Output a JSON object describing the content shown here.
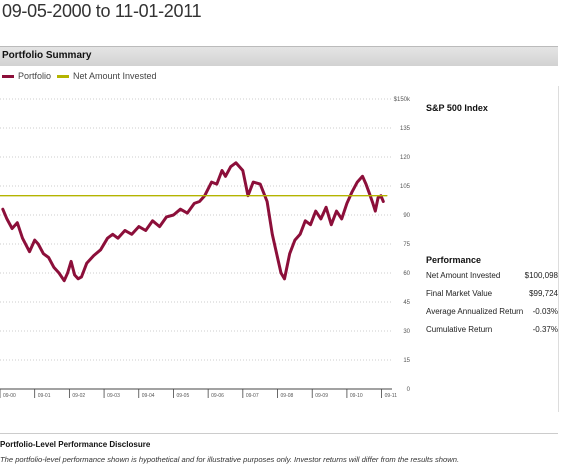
{
  "page": {
    "title": "09-05-2000 to 11-01-2011"
  },
  "section": {
    "title": "Portfolio Summary"
  },
  "legend": [
    {
      "label": "Portfolio",
      "color": "#8c0f3a"
    },
    {
      "label": "Net Amount Invested",
      "color": "#b4b400"
    }
  ],
  "right_panel": {
    "index_title": "S&P 500 Index",
    "performance_title": "Performance",
    "rows": [
      {
        "label": "Net Amount Invested",
        "value": "$100,098"
      },
      {
        "label": "Final Market Value",
        "value": "$99,724"
      },
      {
        "label": "Average Annualized Return",
        "value": "-0.03%"
      },
      {
        "label": "Cumulative Return",
        "value": "-0.37%"
      }
    ]
  },
  "disclosure": {
    "title": "Portfolio-Level Performance Disclosure",
    "text": "The portfolio-level performance shown is hypothetical and for illustrative purposes only. Investor returns will differ from the results shown."
  },
  "chart_data": {
    "type": "line",
    "xlim": [
      2000.6,
      2011.9
    ],
    "ylim": [
      0,
      150
    ],
    "y_ticks": [
      0,
      15,
      30,
      45,
      60,
      75,
      90,
      105,
      120,
      135,
      150
    ],
    "y_tick_labels": [
      "0",
      "15",
      "30",
      "45",
      "60",
      "75",
      "90",
      "105",
      "120",
      "135",
      "$150k"
    ],
    "x_ticks": [
      2000.6,
      2001.6,
      2002.6,
      2003.6,
      2004.6,
      2005.6,
      2006.6,
      2007.6,
      2008.6,
      2009.6,
      2010.6,
      2011.6
    ],
    "x_tick_labels": [
      "09-00",
      "09-01",
      "09-02",
      "09-03",
      "09-04",
      "09-05",
      "09-06",
      "09-07",
      "09-08",
      "09-09",
      "09-10",
      "09-11"
    ],
    "series": [
      {
        "name": "Portfolio",
        "color": "#8c0f3a",
        "x": [
          2000.68,
          2000.8,
          2000.95,
          2001.1,
          2001.25,
          2001.45,
          2001.6,
          2001.7,
          2001.85,
          2002.0,
          2002.15,
          2002.3,
          2002.45,
          2002.55,
          2002.65,
          2002.75,
          2002.85,
          2002.95,
          2003.1,
          2003.3,
          2003.5,
          2003.7,
          2003.85,
          2004.0,
          2004.2,
          2004.4,
          2004.6,
          2004.8,
          2005.0,
          2005.2,
          2005.4,
          2005.6,
          2005.8,
          2006.0,
          2006.2,
          2006.35,
          2006.5,
          2006.7,
          2006.85,
          2007.0,
          2007.1,
          2007.25,
          2007.4,
          2007.6,
          2007.75,
          2007.9,
          2008.1,
          2008.3,
          2008.45,
          2008.6,
          2008.7,
          2008.8,
          2008.95,
          2009.1,
          2009.25,
          2009.4,
          2009.55,
          2009.7,
          2009.85,
          2010.0,
          2010.15,
          2010.3,
          2010.45,
          2010.6,
          2010.75,
          2010.9,
          2011.05,
          2011.15,
          2011.25,
          2011.35,
          2011.42,
          2011.5,
          2011.58,
          2011.65
        ],
        "values": [
          93,
          88,
          83,
          86,
          78,
          71,
          77,
          75,
          70,
          68,
          63,
          60,
          56,
          60,
          66,
          59,
          57,
          58,
          65,
          69,
          72,
          78,
          80,
          78,
          82,
          80,
          84,
          82,
          87,
          84,
          89,
          90,
          93,
          91,
          96,
          97,
          100,
          107,
          106,
          113,
          110,
          115,
          117,
          113,
          100,
          107,
          106,
          97,
          80,
          68,
          60,
          57,
          70,
          77,
          80,
          87,
          85,
          92,
          88,
          94,
          85,
          92,
          88,
          96,
          102,
          107,
          110,
          106,
          101,
          96,
          92,
          99,
          100,
          97
        ]
      },
      {
        "name": "Net Amount Invested",
        "color": "#b4b400",
        "x": [
          2000.6,
          2011.75
        ],
        "values": [
          100,
          100
        ]
      }
    ]
  }
}
